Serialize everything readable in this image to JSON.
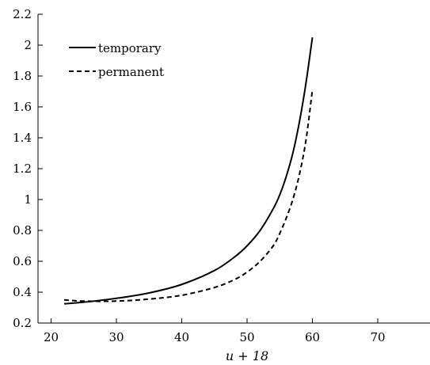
{
  "chart_data": {
    "type": "line",
    "title": "",
    "xlabel": "u + 18",
    "ylabel": "",
    "xlim": [
      18,
      78
    ],
    "ylim": [
      0.2,
      2.2
    ],
    "xticks": [
      20,
      30,
      40,
      50,
      60,
      70
    ],
    "yticks": [
      0.2,
      0.4,
      0.6,
      0.8,
      1,
      1.2,
      1.4,
      1.6,
      1.8,
      2,
      2.2
    ],
    "xtick_labels": [
      "20",
      "30",
      "40",
      "50",
      "60",
      "70"
    ],
    "ytick_labels": [
      "0.2",
      "0.4",
      "0.6",
      "0.8",
      "1",
      "1.2",
      "1.4",
      "1.6",
      "1.8",
      "2",
      "2.2"
    ],
    "grid": false,
    "legend_position": "top-left",
    "series": [
      {
        "name": "temporary",
        "style": "solid",
        "color": "#000000",
        "x": [
          22,
          25,
          30,
          35,
          40,
          45,
          48,
          50,
          52,
          54,
          55,
          56,
          57,
          58,
          59,
          60
        ],
        "y": [
          0.325,
          0.335,
          0.36,
          0.395,
          0.45,
          0.54,
          0.625,
          0.7,
          0.8,
          0.94,
          1.03,
          1.15,
          1.3,
          1.5,
          1.75,
          2.05
        ]
      },
      {
        "name": "permanent",
        "style": "dashed",
        "color": "#000000",
        "x": [
          22,
          25,
          30,
          35,
          40,
          45,
          48,
          50,
          52,
          54,
          55,
          56,
          57,
          58,
          59,
          60
        ],
        "y": [
          0.35,
          0.342,
          0.342,
          0.355,
          0.38,
          0.43,
          0.48,
          0.53,
          0.6,
          0.7,
          0.78,
          0.88,
          1.0,
          1.16,
          1.38,
          1.71
        ]
      }
    ]
  }
}
